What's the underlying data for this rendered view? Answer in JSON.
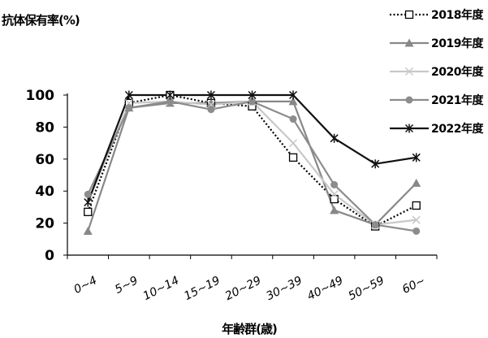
{
  "chart_data": {
    "type": "line",
    "ylabel": "抗体保有率(%)",
    "xlabel": "年齢群(歳)",
    "categories": [
      "0~4",
      "5~9",
      "10~14",
      "15~19",
      "20~29",
      "30~39",
      "40~49",
      "50~59",
      "60~"
    ],
    "ylim": [
      0,
      100
    ],
    "yticks": [
      "0",
      "20",
      "40",
      "60",
      "80",
      "100"
    ],
    "grid": false,
    "legend_position": "top-right",
    "series": [
      {
        "name": "2018年度",
        "color": "#000000",
        "dash": "dotted",
        "marker": "open-square",
        "values": [
          27,
          95,
          100,
          95,
          93,
          61,
          35,
          18,
          31
        ]
      },
      {
        "name": "2019年度",
        "color": "#888888",
        "dash": "solid",
        "marker": "triangle",
        "values": [
          15,
          92,
          95,
          95,
          96,
          96,
          28,
          19,
          45
        ]
      },
      {
        "name": "2020年度",
        "color": "#c8c8c8",
        "dash": "solid",
        "marker": "x",
        "values": [
          33,
          95,
          96,
          94,
          96,
          70,
          38,
          19,
          22
        ]
      },
      {
        "name": "2021年度",
        "color": "#8c8c8c",
        "dash": "solid",
        "marker": "circle",
        "values": [
          38,
          92,
          96,
          91,
          96,
          85,
          44,
          19,
          15
        ]
      },
      {
        "name": "2022年度",
        "color": "#111111",
        "dash": "solid",
        "marker": "asterisk",
        "values": [
          33,
          100,
          100,
          100,
          100,
          100,
          73,
          57,
          61
        ]
      }
    ]
  }
}
